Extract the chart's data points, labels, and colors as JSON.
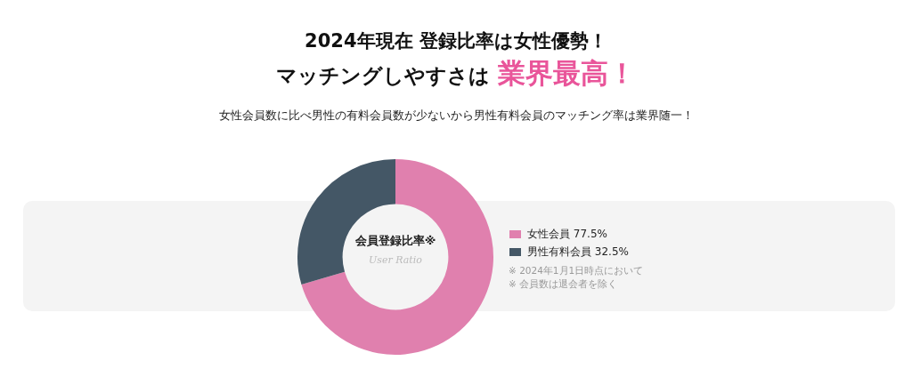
{
  "chart_data": {
    "type": "donut",
    "title": "2024年現在 登録比率は女性優勢！",
    "subtitle": "マッチングしやすさは 業界最高！",
    "categories": [
      "女性会員",
      "男性有料会員"
    ],
    "values": [
      77.5,
      32.5
    ],
    "value_labels": [
      "77.5%",
      "32.5%"
    ],
    "colors": [
      "#e080ae",
      "#445766"
    ],
    "legend": "right",
    "annotations": [
      "女性会員数に比べ男性の有料会員数が少ないから男性有料会員のマッチング率は業界随一！",
      "会員登録比率※",
      "User Ratio",
      "※ 2024年1月1日時点において",
      "※ 会員数は退会者を除く"
    ]
  }
}
